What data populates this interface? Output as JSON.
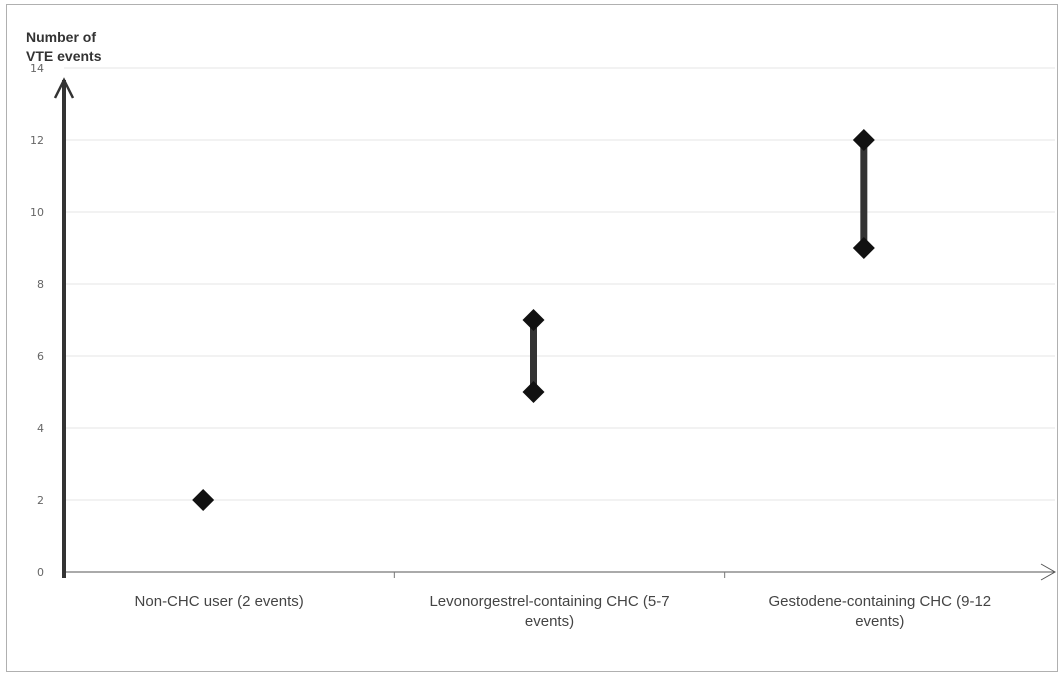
{
  "chart_data": {
    "type": "scatter",
    "ylabel_lines": [
      "Number of",
      "VTE events"
    ],
    "ylabel": "Number of VTE events",
    "xlabel": "",
    "title": "",
    "categories": [
      {
        "lines": [
          "Non-CHC user (2 events)"
        ]
      },
      {
        "lines": [
          "Levonorgestrel-containing CHC (5-7",
          "events)"
        ]
      },
      {
        "lines": [
          "Gestodene-containing CHC (9-12",
          "events)"
        ]
      }
    ],
    "ranges": [
      {
        "low": 2,
        "high": 2
      },
      {
        "low": 5,
        "high": 7
      },
      {
        "low": 9,
        "high": 12
      }
    ],
    "ylim": [
      0,
      14
    ],
    "yticks": [
      0,
      2,
      4,
      6,
      8,
      10,
      12,
      14
    ],
    "grid": true,
    "legend": "none",
    "colors": {
      "marker": "#111111",
      "range_line": "#333333",
      "grid": "#e6e6e6",
      "axis": "#333333"
    }
  }
}
